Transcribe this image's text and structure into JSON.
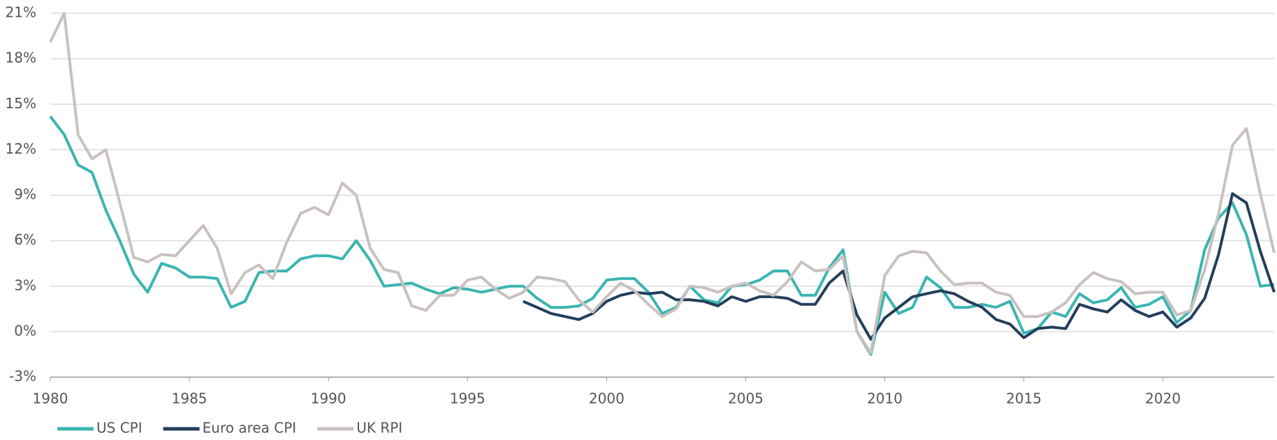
{
  "chart_data": {
    "type": "line",
    "x": [
      1980,
      1980.5,
      1981,
      1981.5,
      1982,
      1982.5,
      1983,
      1983.5,
      1984,
      1984.5,
      1985,
      1985.5,
      1986,
      1986.5,
      1987,
      1987.5,
      1988,
      1988.5,
      1989,
      1989.5,
      1990,
      1990.5,
      1991,
      1991.5,
      1992,
      1992.5,
      1993,
      1993.5,
      1994,
      1994.5,
      1995,
      1995.5,
      1996,
      1996.5,
      1997,
      1997.5,
      1998,
      1998.5,
      1999,
      1999.5,
      2000,
      2000.5,
      2001,
      2001.5,
      2002,
      2002.5,
      2003,
      2003.5,
      2004,
      2004.5,
      2005,
      2005.5,
      2006,
      2006.5,
      2007,
      2007.5,
      2008,
      2008.5,
      2009,
      2009.5,
      2010,
      2010.5,
      2011,
      2011.5,
      2012,
      2012.5,
      2013,
      2013.5,
      2014,
      2014.5,
      2015,
      2015.5,
      2016,
      2016.5,
      2017,
      2017.5,
      2018,
      2018.5,
      2019,
      2019.5,
      2020,
      2020.5,
      2021,
      2021.5,
      2022,
      2022.5,
      2023,
      2023.5,
      2024
    ],
    "series": [
      {
        "name": "US CPI",
        "color": "#3bb5b0",
        "values": [
          14.2,
          13.0,
          11.0,
          10.5,
          8.0,
          6.0,
          3.8,
          2.6,
          4.5,
          4.2,
          3.6,
          3.6,
          3.5,
          1.6,
          2.0,
          3.9,
          4.0,
          4.0,
          4.8,
          5.0,
          5.0,
          4.8,
          6.0,
          4.7,
          3.0,
          3.1,
          3.2,
          2.8,
          2.5,
          2.9,
          2.8,
          2.6,
          2.8,
          3.0,
          3.0,
          2.2,
          1.6,
          1.6,
          1.7,
          2.2,
          3.4,
          3.5,
          3.5,
          2.6,
          1.2,
          1.6,
          3.0,
          2.1,
          1.9,
          3.0,
          3.1,
          3.4,
          4.0,
          4.0,
          2.4,
          2.4,
          4.2,
          5.4,
          0.0,
          -1.5,
          2.6,
          1.2,
          1.6,
          3.6,
          2.9,
          1.6,
          1.6,
          1.8,
          1.6,
          2.0,
          -0.1,
          0.2,
          1.3,
          1.0,
          2.5,
          1.9,
          2.1,
          2.9,
          1.6,
          1.8,
          2.3,
          0.6,
          1.4,
          5.4,
          7.5,
          8.5,
          6.4,
          3.0,
          3.1
        ]
      },
      {
        "name": "Euro area CPI",
        "color": "#243f5c",
        "values": [
          null,
          null,
          null,
          null,
          null,
          null,
          null,
          null,
          null,
          null,
          null,
          null,
          null,
          null,
          null,
          null,
          null,
          null,
          null,
          null,
          null,
          null,
          null,
          null,
          null,
          null,
          null,
          null,
          null,
          null,
          null,
          null,
          null,
          null,
          2.0,
          1.6,
          1.2,
          1.0,
          0.8,
          1.2,
          2.0,
          2.4,
          2.6,
          2.5,
          2.6,
          2.1,
          2.1,
          2.0,
          1.7,
          2.3,
          2.0,
          2.3,
          2.3,
          2.2,
          1.8,
          1.8,
          3.2,
          4.0,
          1.1,
          -0.5,
          0.9,
          1.6,
          2.3,
          2.5,
          2.7,
          2.5,
          2.0,
          1.6,
          0.8,
          0.5,
          -0.4,
          0.2,
          0.3,
          0.2,
          1.8,
          1.5,
          1.3,
          2.1,
          1.4,
          1.0,
          1.3,
          0.3,
          0.9,
          2.2,
          5.1,
          9.1,
          8.5,
          5.3,
          2.6
        ]
      },
      {
        "name": "UK RPI",
        "color": "#c9c1bf",
        "values": [
          19.1,
          21.0,
          13.0,
          11.4,
          12.0,
          8.5,
          4.9,
          4.6,
          5.1,
          5.0,
          6.0,
          7.0,
          5.5,
          2.5,
          3.9,
          4.4,
          3.5,
          5.9,
          7.8,
          8.2,
          7.7,
          9.8,
          9.0,
          5.5,
          4.1,
          3.9,
          1.7,
          1.4,
          2.4,
          2.4,
          3.4,
          3.6,
          2.8,
          2.2,
          2.6,
          3.6,
          3.5,
          3.3,
          2.1,
          1.3,
          2.3,
          3.2,
          2.7,
          1.8,
          1.0,
          1.5,
          3.0,
          2.9,
          2.6,
          3.0,
          3.2,
          2.7,
          2.4,
          3.3,
          4.6,
          4.0,
          4.1,
          5.0,
          0.0,
          -1.4,
          3.7,
          5.0,
          5.3,
          5.2,
          4.0,
          3.1,
          3.2,
          3.2,
          2.6,
          2.4,
          1.0,
          1.0,
          1.3,
          1.9,
          3.1,
          3.9,
          3.5,
          3.3,
          2.5,
          2.6,
          2.6,
          1.1,
          1.4,
          4.1,
          7.8,
          12.3,
          13.4,
          9.1,
          5.2
        ]
      }
    ],
    "xlim": [
      1980,
      2024
    ],
    "xticks": [
      1980,
      1985,
      1990,
      1995,
      2000,
      2005,
      2010,
      2015,
      2020
    ],
    "ylim": [
      -3,
      21
    ],
    "yticks": [
      {
        "value": -3,
        "label": "-3%"
      },
      {
        "value": 0,
        "label": "0%"
      },
      {
        "value": 3,
        "label": "3%"
      },
      {
        "value": 6,
        "label": "6%"
      },
      {
        "value": 9,
        "label": "9%"
      },
      {
        "value": 12,
        "label": "12%"
      },
      {
        "value": 15,
        "label": "15%"
      },
      {
        "value": 18,
        "label": "18%"
      },
      {
        "value": 21,
        "label": "21%"
      }
    ],
    "grid": true,
    "legend": "bottom-left"
  }
}
